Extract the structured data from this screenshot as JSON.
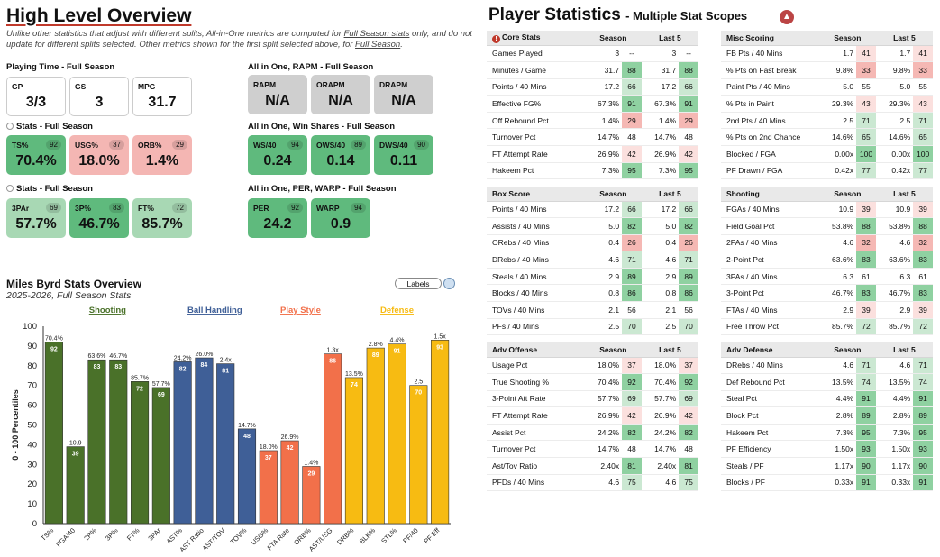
{
  "overview": {
    "title": "High Level Overview",
    "note_a": "Unlike other statistics that adjust with different splits, All-in-One metrics are computed for ",
    "note_link": "Full Season stats",
    "note_b": " only, and do not update for different splits selected. Other metrics shown for the first split selected above, for ",
    "note_link2": "Full Season",
    "note_c": ".",
    "playing_time": {
      "title": "Playing Time - Full Season",
      "cards": [
        {
          "label": "GP",
          "value": "3/3",
          "pct": ""
        },
        {
          "label": "GS",
          "value": "3",
          "pct": ""
        },
        {
          "label": "MPG",
          "value": "31.7",
          "pct": ""
        }
      ]
    },
    "stats1": {
      "title": "Stats - Full Season",
      "cards": [
        {
          "label": "TS%",
          "value": "70.4%",
          "pct": "92",
          "color": "green"
        },
        {
          "label": "USG%",
          "value": "18.0%",
          "pct": "37",
          "color": "pink"
        },
        {
          "label": "ORB%",
          "value": "1.4%",
          "pct": "29",
          "color": "pink"
        }
      ]
    },
    "stats2": {
      "title": "Stats - Full Season",
      "cards": [
        {
          "label": "3PAr",
          "value": "57.7%",
          "pct": "69",
          "color": "lgreen"
        },
        {
          "label": "3P%",
          "value": "46.7%",
          "pct": "83",
          "color": "green"
        },
        {
          "label": "FT%",
          "value": "85.7%",
          "pct": "72",
          "color": "lgreen"
        }
      ]
    },
    "rapm": {
      "title": "All in One, RAPM - Full Season",
      "cards": [
        {
          "label": "RAPM",
          "value": "N/A",
          "pct": "",
          "color": "grey"
        },
        {
          "label": "ORAPM",
          "value": "N/A",
          "pct": "",
          "color": "grey"
        },
        {
          "label": "DRAPM",
          "value": "N/A",
          "pct": "",
          "color": "grey"
        }
      ]
    },
    "ws": {
      "title": "All in One, Win Shares - Full Season",
      "cards": [
        {
          "label": "WS/40",
          "value": "0.24",
          "pct": "94",
          "color": "green"
        },
        {
          "label": "OWS/40",
          "value": "0.14",
          "pct": "89",
          "color": "green"
        },
        {
          "label": "DWS/40",
          "value": "0.11",
          "pct": "90",
          "color": "green"
        }
      ]
    },
    "per": {
      "title": "All in One, PER, WARP - Full Season",
      "cards": [
        {
          "label": "PER",
          "value": "24.2",
          "pct": "92",
          "color": "green"
        },
        {
          "label": "WARP",
          "value": "0.9",
          "pct": "94",
          "color": "green"
        }
      ]
    }
  },
  "chart_data": {
    "type": "bar",
    "title": "Miles Byrd Stats Overview",
    "subtitle": "2025-2026, Full Season Stats",
    "ylabel": "0 - 100 Percentiles",
    "ylim": [
      0,
      100
    ],
    "yticks": [
      0,
      10,
      20,
      30,
      40,
      50,
      60,
      70,
      80,
      90,
      100
    ],
    "labels_button": "Labels",
    "groups": [
      {
        "name": "Shooting",
        "color": "#4a7129"
      },
      {
        "name": "Ball Handling",
        "color": "#3f5f97"
      },
      {
        "name": "Play Style",
        "color": "#f2704a"
      },
      {
        "name": "Defense",
        "color": "#f7bb12"
      }
    ],
    "bars": [
      {
        "cat": "TS%",
        "value": 92,
        "top": "70.4%",
        "group": 0
      },
      {
        "cat": "FGA/40",
        "value": 39,
        "top": "10.9",
        "group": 0
      },
      {
        "cat": "2P%",
        "value": 83,
        "top": "63.6%",
        "group": 0
      },
      {
        "cat": "3P%",
        "value": 83,
        "top": "46.7%",
        "group": 0
      },
      {
        "cat": "FT%",
        "value": 72,
        "top": "85.7%",
        "group": 0
      },
      {
        "cat": "3PAr",
        "value": 69,
        "top": "57.7%",
        "group": 0
      },
      {
        "cat": "AST%",
        "value": 82,
        "top": "24.2%",
        "group": 1
      },
      {
        "cat": "AST Ratio",
        "value": 84,
        "top": "26.0%",
        "group": 1
      },
      {
        "cat": "AST/TOV",
        "value": 81,
        "top": "2.4x",
        "group": 1
      },
      {
        "cat": "TOV%",
        "value": 48,
        "top": "14.7%",
        "group": 1
      },
      {
        "cat": "USG%",
        "value": 37,
        "top": "18.0%",
        "group": 2
      },
      {
        "cat": "FTA Rate",
        "value": 42,
        "top": "26.9%",
        "group": 2
      },
      {
        "cat": "ORB%",
        "value": 29,
        "top": "1.4%",
        "group": 2
      },
      {
        "cat": "AST/USG",
        "value": 86,
        "top": "1.3x",
        "group": 2
      },
      {
        "cat": "DRB%",
        "value": 74,
        "top": "13.5%",
        "group": 3
      },
      {
        "cat": "BLK%",
        "value": 89,
        "top": "2.8%",
        "group": 3
      },
      {
        "cat": "STL%",
        "value": 91,
        "top": "4.4%",
        "group": 3
      },
      {
        "cat": "PF/40",
        "value": 70,
        "top": "2.5",
        "group": 3
      },
      {
        "cat": "PF Eff",
        "value": 93,
        "top": "1.5x",
        "group": 3
      }
    ]
  },
  "stats": {
    "title": "Player Statistics",
    "subtitle": "- Multiple Stat Scopes",
    "col_season": "Season",
    "col_last5": "Last 5",
    "tables": [
      {
        "title": "Core Stats",
        "alert": true,
        "rows": [
          [
            "Games Played",
            "3",
            "--",
            "3",
            "--"
          ],
          [
            "Minutes / Game",
            "31.7",
            "88",
            "31.7",
            "88"
          ],
          [
            "Points / 40 Mins",
            "17.2",
            "66",
            "17.2",
            "66"
          ],
          [
            "Effective FG%",
            "67.3%",
            "91",
            "67.3%",
            "91"
          ],
          [
            "Off Rebound Pct",
            "1.4%",
            "29",
            "1.4%",
            "29"
          ],
          [
            "Turnover Pct",
            "14.7%",
            "48",
            "14.7%",
            "48"
          ],
          [
            "FT Attempt Rate",
            "26.9%",
            "42",
            "26.9%",
            "42"
          ],
          [
            "Hakeem Pct",
            "7.3%",
            "95",
            "7.3%",
            "95"
          ]
        ]
      },
      {
        "title": "Misc Scoring",
        "alert": false,
        "rows": [
          [
            "FB Pts / 40 Mins",
            "1.7",
            "41",
            "1.7",
            "41"
          ],
          [
            "% Pts on Fast Break",
            "9.8%",
            "33",
            "9.8%",
            "33"
          ],
          [
            "Paint Pts / 40 Mins",
            "5.0",
            "55",
            "5.0",
            "55"
          ],
          [
            "% Pts in Paint",
            "29.3%",
            "43",
            "29.3%",
            "43"
          ],
          [
            "2nd Pts / 40 Mins",
            "2.5",
            "71",
            "2.5",
            "71"
          ],
          [
            "% Pts on 2nd Chance",
            "14.6%",
            "65",
            "14.6%",
            "65"
          ],
          [
            "Blocked / FGA",
            "0.00x",
            "100",
            "0.00x",
            "100"
          ],
          [
            "PF Drawn / FGA",
            "0.42x",
            "77",
            "0.42x",
            "77"
          ]
        ]
      },
      {
        "title": "Box Score",
        "alert": false,
        "rows": [
          [
            "Points / 40 Mins",
            "17.2",
            "66",
            "17.2",
            "66"
          ],
          [
            "Assists / 40 Mins",
            "5.0",
            "82",
            "5.0",
            "82"
          ],
          [
            "ORebs / 40 Mins",
            "0.4",
            "26",
            "0.4",
            "26"
          ],
          [
            "DRebs / 40 Mins",
            "4.6",
            "71",
            "4.6",
            "71"
          ],
          [
            "Steals / 40 Mins",
            "2.9",
            "89",
            "2.9",
            "89"
          ],
          [
            "Blocks / 40 Mins",
            "0.8",
            "86",
            "0.8",
            "86"
          ],
          [
            "TOVs / 40 Mins",
            "2.1",
            "56",
            "2.1",
            "56"
          ],
          [
            "PFs / 40 Mins",
            "2.5",
            "70",
            "2.5",
            "70"
          ]
        ]
      },
      {
        "title": "Shooting",
        "alert": false,
        "rows": [
          [
            "FGAs / 40 Mins",
            "10.9",
            "39",
            "10.9",
            "39"
          ],
          [
            "Field Goal Pct",
            "53.8%",
            "88",
            "53.8%",
            "88"
          ],
          [
            "2PAs / 40 Mins",
            "4.6",
            "32",
            "4.6",
            "32"
          ],
          [
            "2-Point Pct",
            "63.6%",
            "83",
            "63.6%",
            "83"
          ],
          [
            "3PAs / 40 Mins",
            "6.3",
            "61",
            "6.3",
            "61"
          ],
          [
            "3-Point Pct",
            "46.7%",
            "83",
            "46.7%",
            "83"
          ],
          [
            "FTAs / 40 Mins",
            "2.9",
            "39",
            "2.9",
            "39"
          ],
          [
            "Free Throw Pct",
            "85.7%",
            "72",
            "85.7%",
            "72"
          ]
        ]
      },
      {
        "title": "Adv Offense",
        "alert": false,
        "rows": [
          [
            "Usage Pct",
            "18.0%",
            "37",
            "18.0%",
            "37"
          ],
          [
            "True Shooting %",
            "70.4%",
            "92",
            "70.4%",
            "92"
          ],
          [
            "3-Point Att Rate",
            "57.7%",
            "69",
            "57.7%",
            "69"
          ],
          [
            "FT Attempt Rate",
            "26.9%",
            "42",
            "26.9%",
            "42"
          ],
          [
            "Assist Pct",
            "24.2%",
            "82",
            "24.2%",
            "82"
          ],
          [
            "Turnover Pct",
            "14.7%",
            "48",
            "14.7%",
            "48"
          ],
          [
            "Ast/Tov Ratio",
            "2.40x",
            "81",
            "2.40x",
            "81"
          ],
          [
            "PFDs / 40 Mins",
            "4.6",
            "75",
            "4.6",
            "75"
          ]
        ]
      },
      {
        "title": "Adv Defense",
        "alert": false,
        "rows": [
          [
            "DRebs / 40 Mins",
            "4.6",
            "71",
            "4.6",
            "71"
          ],
          [
            "Def Rebound Pct",
            "13.5%",
            "74",
            "13.5%",
            "74"
          ],
          [
            "Steal Pct",
            "4.4%",
            "91",
            "4.4%",
            "91"
          ],
          [
            "Block Pct",
            "2.8%",
            "89",
            "2.8%",
            "89"
          ],
          [
            "Hakeem Pct",
            "7.3%",
            "95",
            "7.3%",
            "95"
          ],
          [
            "PF Efficiency",
            "1.50x",
            "93",
            "1.50x",
            "93"
          ],
          [
            "Steals / PF",
            "1.17x",
            "90",
            "1.17x",
            "90"
          ],
          [
            "Blocks / PF",
            "0.33x",
            "91",
            "0.33x",
            "91"
          ]
        ]
      }
    ]
  }
}
